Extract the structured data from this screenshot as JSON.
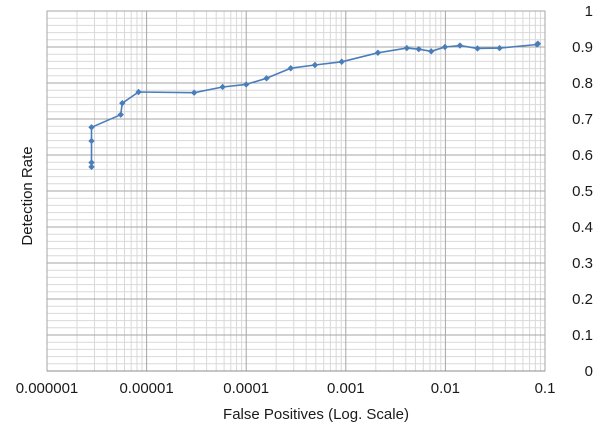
{
  "chart_data": {
    "type": "line",
    "title": "",
    "xlabel": "False Positives (Log. Scale)",
    "ylabel": "Detection Rate",
    "x_scale": "log",
    "xlim": [
      1e-06,
      0.1
    ],
    "ylim": [
      0,
      1
    ],
    "x_ticks": [
      1e-06,
      1e-05,
      0.0001,
      0.001,
      0.01,
      0.1
    ],
    "x_tick_labels": [
      "0.000001",
      "0.00001",
      "0.0001",
      "0.001",
      "0.01",
      "0.1"
    ],
    "y_ticks": [
      0,
      0.1,
      0.2,
      0.3,
      0.4,
      0.5,
      0.6,
      0.7,
      0.8,
      0.9,
      1
    ],
    "y_tick_labels": [
      "0",
      "0.1",
      "0.2",
      "0.3",
      "0.4",
      "0.5",
      "0.6",
      "0.7",
      "0.8",
      "0.9",
      "1"
    ],
    "y_axis_side": "right",
    "grid": true,
    "minor_grid": true,
    "legend": "none",
    "colors": {
      "line": "#4a7ebb",
      "marker": "#4a7ebb",
      "grid_major": "#a6a6a6",
      "grid_minor": "#d9d9d9"
    },
    "series": [
      {
        "name": "",
        "x": [
          2.8e-06,
          2.8e-06,
          2.8e-06,
          2.8e-06,
          5.5e-06,
          5.7e-06,
          8.3e-06,
          3e-05,
          5.8e-05,
          0.0001,
          0.00016,
          0.00028,
          0.00049,
          0.00091,
          0.0021,
          0.0041,
          0.0054,
          0.0072,
          0.0099,
          0.014,
          0.021,
          0.035,
          0.083,
          0.085
        ],
        "y": [
          0.567,
          0.579,
          0.639,
          0.677,
          0.712,
          0.744,
          0.775,
          0.773,
          0.789,
          0.796,
          0.813,
          0.841,
          0.85,
          0.859,
          0.884,
          0.897,
          0.894,
          0.888,
          0.9,
          0.904,
          0.896,
          0.897,
          0.907,
          0.909
        ]
      }
    ]
  }
}
